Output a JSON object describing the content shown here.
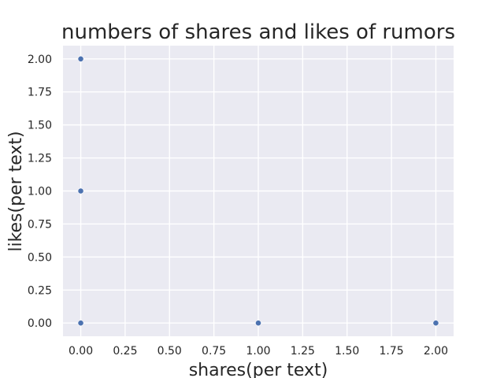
{
  "chart_data": {
    "type": "scatter",
    "title": "numbers of shares and likes of rumors",
    "xlabel": "shares(per text)",
    "ylabel": "likes(per text)",
    "xlim": [
      -0.1,
      2.1
    ],
    "ylim": [
      -0.1,
      2.1
    ],
    "xticks": [
      0.0,
      0.25,
      0.5,
      0.75,
      1.0,
      1.25,
      1.5,
      1.75,
      2.0
    ],
    "yticks": [
      0.0,
      0.25,
      0.5,
      0.75,
      1.0,
      1.25,
      1.5,
      1.75,
      2.0
    ],
    "xtick_labels": [
      "0.00",
      "0.25",
      "0.50",
      "0.75",
      "1.00",
      "1.25",
      "1.50",
      "1.75",
      "2.00"
    ],
    "ytick_labels": [
      "0.00",
      "0.25",
      "0.50",
      "0.75",
      "1.00",
      "1.25",
      "1.50",
      "1.75",
      "2.00"
    ],
    "grid": true,
    "points": [
      {
        "x": 0,
        "y": 2
      },
      {
        "x": 0,
        "y": 1
      },
      {
        "x": 0,
        "y": 0
      },
      {
        "x": 1,
        "y": 0
      },
      {
        "x": 2,
        "y": 0
      }
    ],
    "colors": {
      "background": "#eaeaf2",
      "grid": "#ffffff",
      "marker": "#4c72b0"
    }
  }
}
